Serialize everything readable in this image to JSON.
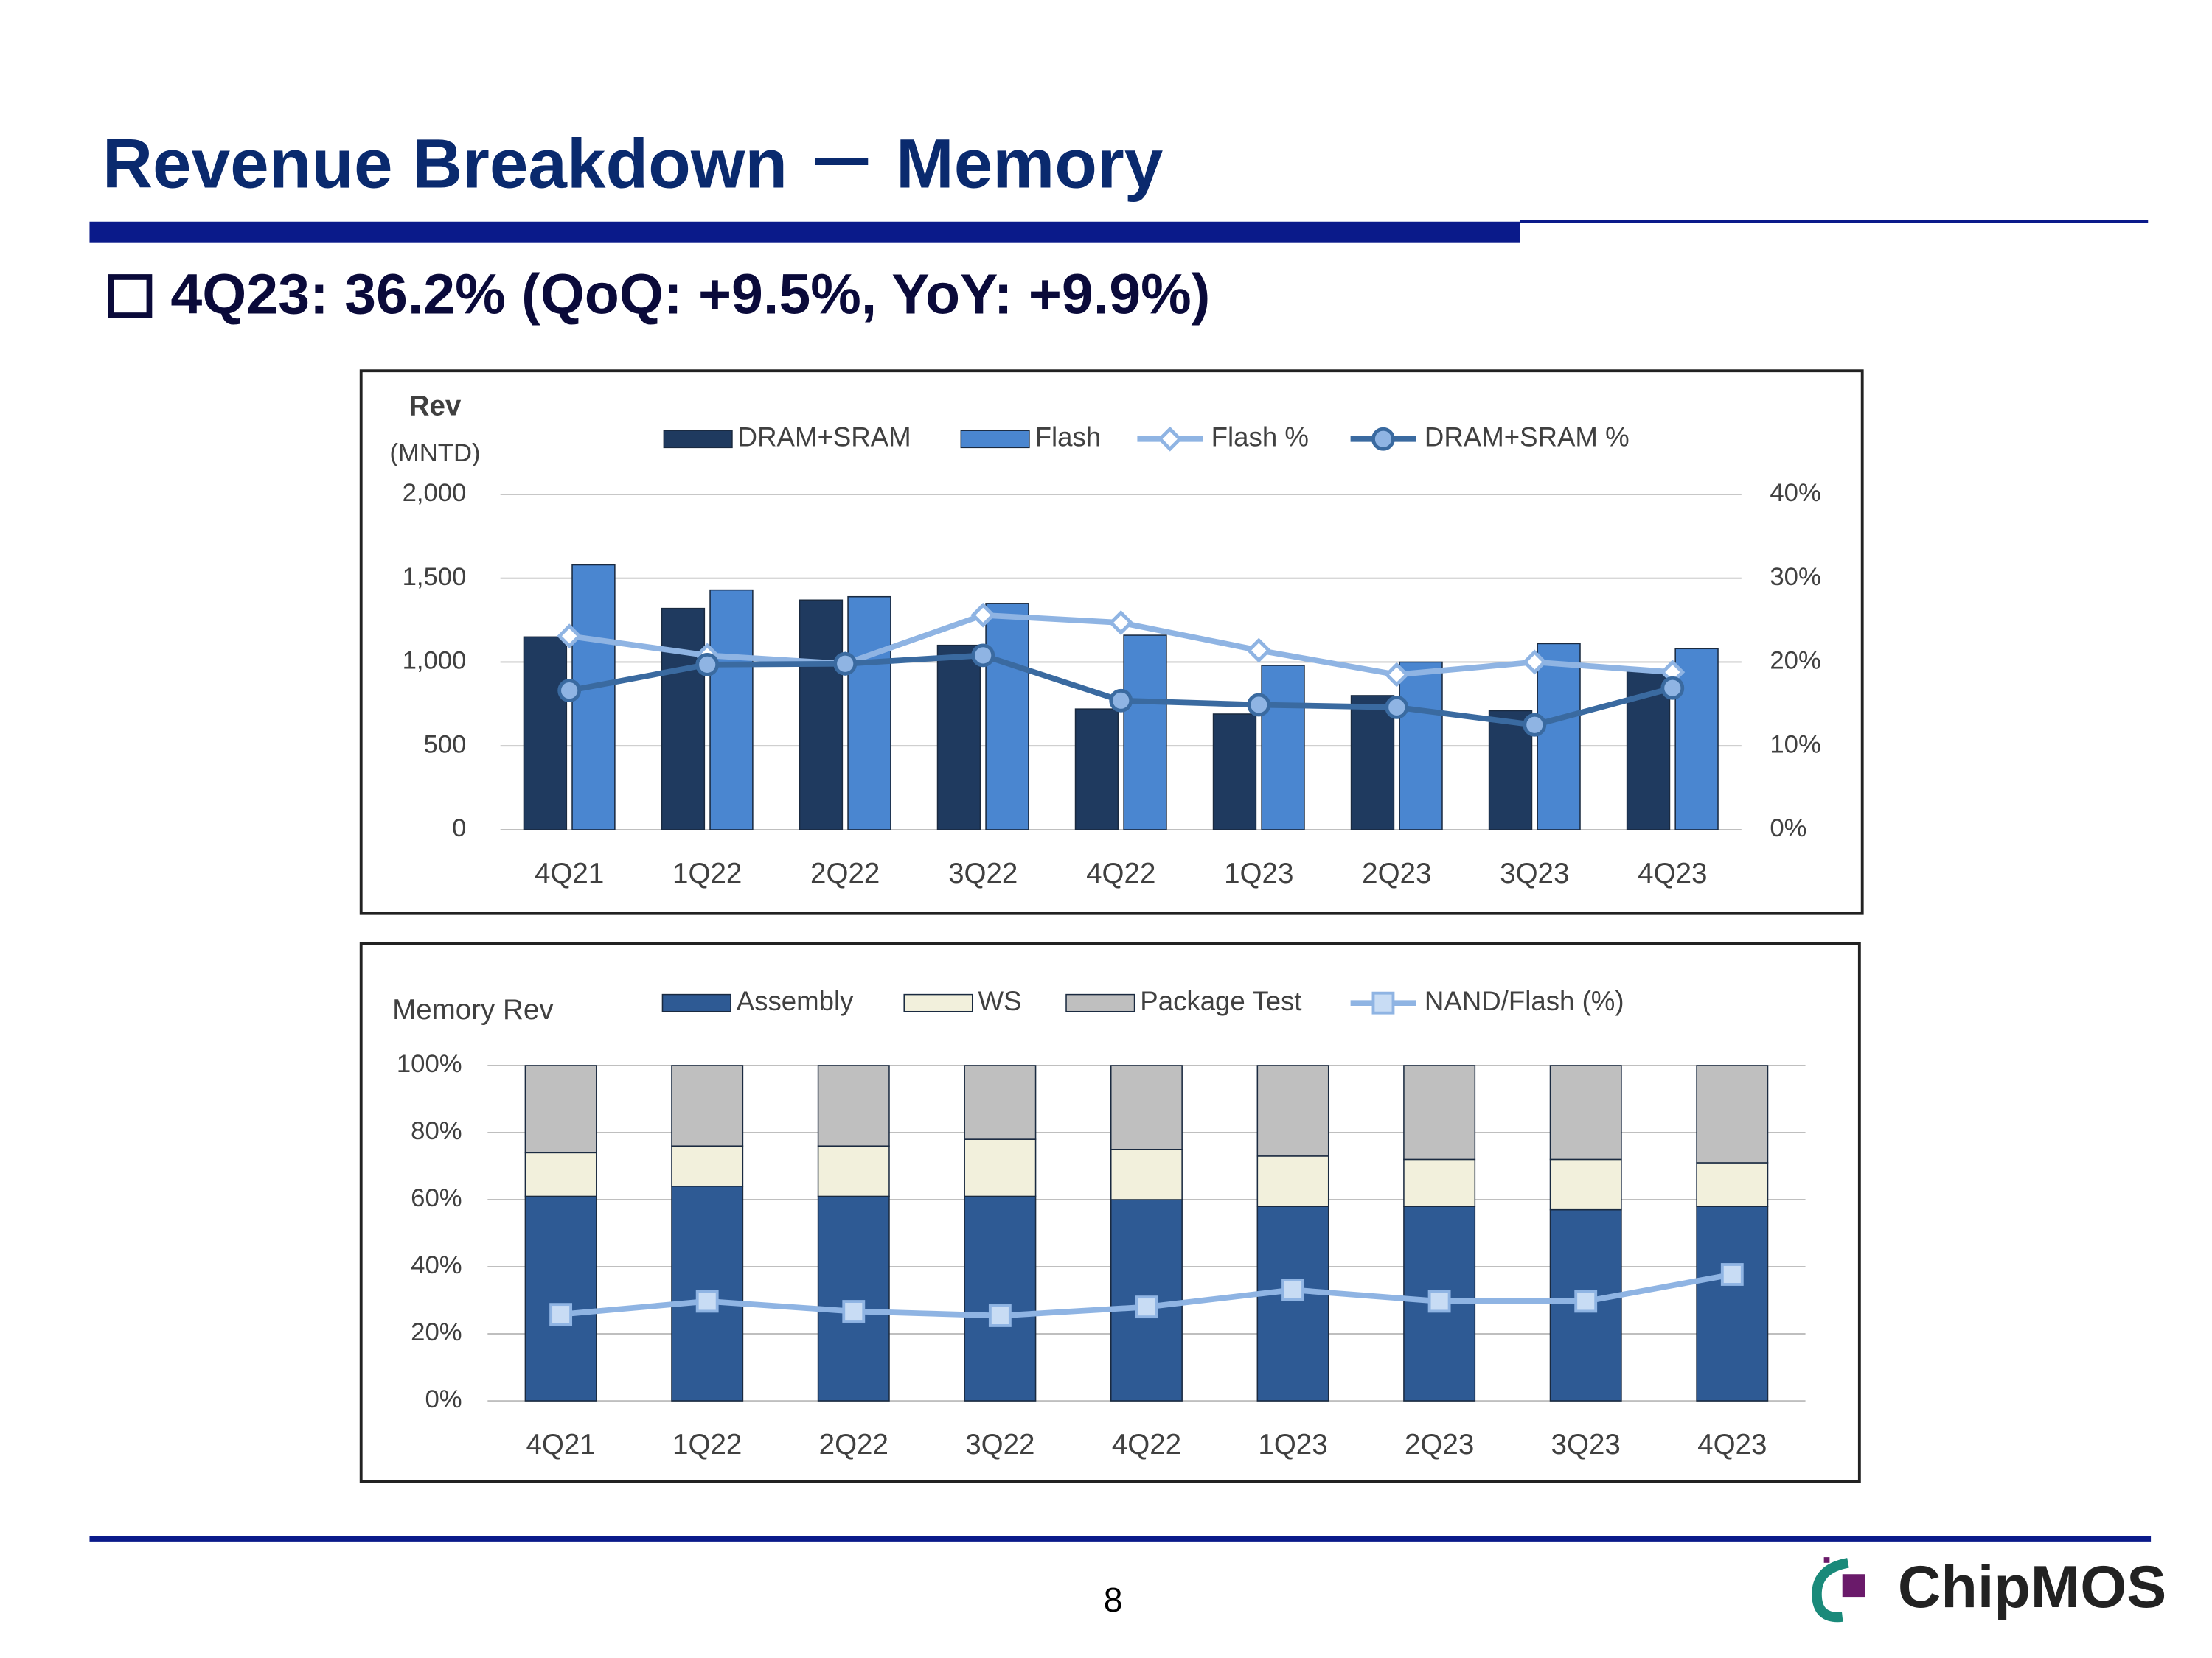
{
  "title": "Revenue Breakdown － Memory",
  "subtitle": "4Q23: 36.2% (QoQ: +9.5%, YoY: +9.9%)",
  "page_number": "8",
  "logo": "ChipMOS",
  "chart_data": [
    {
      "type": "bar",
      "y_label": "Rev",
      "y_unit": "(MNTD)",
      "categories": [
        "4Q21",
        "1Q22",
        "2Q22",
        "3Q22",
        "4Q22",
        "1Q23",
        "2Q23",
        "3Q23",
        "4Q23"
      ],
      "ylim": [
        0,
        2000
      ],
      "yticks": [
        0,
        500,
        {
          "value": 1000,
          "label": "1,000"
        },
        {
          "value": 1500,
          "label": "1,500"
        },
        {
          "value": 2000,
          "label": "2,000"
        }
      ],
      "y2lim": [
        0,
        40
      ],
      "y2ticks": [
        {
          "value": 0,
          "label": "0%"
        },
        {
          "value": 10,
          "label": "10%"
        },
        {
          "value": 20,
          "label": "20%"
        },
        {
          "value": 30,
          "label": "30%"
        },
        {
          "value": 40,
          "label": "40%"
        }
      ],
      "grid": true,
      "series": [
        {
          "name": "DRAM+SRAM",
          "type": "bar",
          "color": "#1f3a5f",
          "values": [
            1150,
            1320,
            1370,
            1100,
            720,
            690,
            800,
            710,
            950
          ]
        },
        {
          "name": "Flash",
          "type": "bar",
          "color": "#4a86d0",
          "values": [
            1580,
            1430,
            1390,
            1350,
            1160,
            980,
            1000,
            1110,
            1080
          ]
        },
        {
          "name": "Flash %",
          "type": "line",
          "axis": "y2",
          "marker": "diamond",
          "color": "#8fb4e3",
          "values": [
            23.1,
            20.8,
            19.8,
            25.6,
            24.7,
            21.4,
            18.5,
            20.0,
            18.8
          ]
        },
        {
          "name": "DRAM+SRAM %",
          "type": "line",
          "axis": "y2",
          "marker": "circle",
          "color": "#3a6aa0",
          "values": [
            16.6,
            19.7,
            19.8,
            20.8,
            15.4,
            14.9,
            14.6,
            12.5,
            16.9
          ]
        }
      ]
    },
    {
      "type": "bar",
      "stacked": true,
      "y_label": "Memory Rev",
      "categories": [
        "4Q21",
        "1Q22",
        "2Q22",
        "3Q22",
        "4Q22",
        "1Q23",
        "2Q23",
        "3Q23",
        "4Q23"
      ],
      "ylim": [
        0,
        100
      ],
      "yticks": [
        {
          "value": 0,
          "label": "0%"
        },
        {
          "value": 20,
          "label": "20%"
        },
        {
          "value": 40,
          "label": "40%"
        },
        {
          "value": 60,
          "label": "60%"
        },
        {
          "value": 80,
          "label": "80%"
        },
        {
          "value": 100,
          "label": "100%"
        }
      ],
      "grid": true,
      "series": [
        {
          "name": "Assembly",
          "type": "bar",
          "color": "#2e5a94",
          "values": [
            61,
            64,
            61,
            61,
            60,
            58,
            58,
            57,
            58
          ]
        },
        {
          "name": "WS",
          "type": "bar",
          "color": "#f2f0dc",
          "values": [
            13,
            12,
            15,
            17,
            15,
            15,
            14,
            15,
            13
          ]
        },
        {
          "name": "Package Test",
          "type": "bar",
          "color": "#bfbfbf",
          "values": [
            26,
            24,
            24,
            22,
            25,
            27,
            28,
            28,
            29
          ]
        },
        {
          "name": "NAND/Flash (%)",
          "type": "line",
          "marker": "square",
          "color": "#8fb4e3",
          "values": [
            25.8,
            29.7,
            26.7,
            25.4,
            28.0,
            33.1,
            29.7,
            29.7,
            37.7
          ]
        }
      ]
    }
  ]
}
